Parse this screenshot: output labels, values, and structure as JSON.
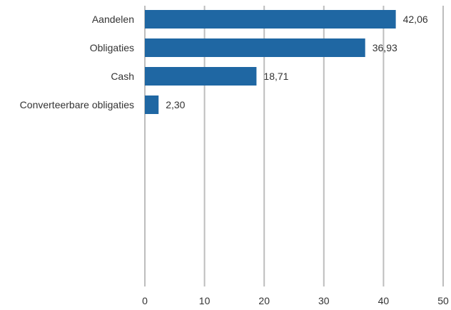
{
  "chart_data": {
    "type": "bar",
    "orientation": "horizontal",
    "title": "",
    "xlabel": "",
    "ylabel": "",
    "categories": [
      "Aandelen",
      "Obligaties",
      "Cash",
      "Converteerbare obligaties"
    ],
    "values": [
      42.06,
      36.93,
      18.71,
      2.3
    ],
    "value_labels": [
      "42,06",
      "36,93",
      "18,71",
      "2,30"
    ],
    "xlim": [
      0,
      50
    ],
    "xticks": [
      0,
      10,
      20,
      30,
      40,
      50
    ],
    "xtick_labels": [
      "0",
      "10",
      "20",
      "30",
      "40",
      "50"
    ],
    "grid": "vertical",
    "legend": "none",
    "bar_color": "#1f67a3",
    "grid_color": "#bdbdbd"
  }
}
